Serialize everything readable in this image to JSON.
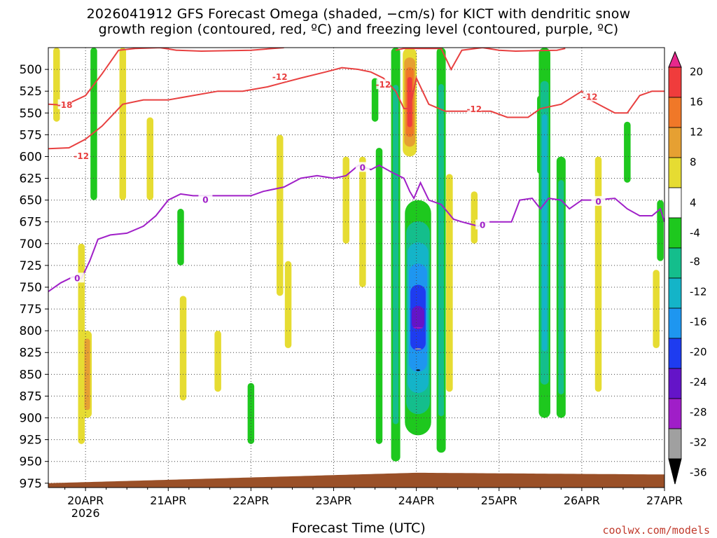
{
  "title_line1": "2026041912 GFS Forecast Omega (shaded, −cm/s) for KICT with dendritic snow",
  "title_line2": "growth region (contoured, red, ºC) and freezing level (contoured, purple, ºC)",
  "credit": "coolwx.com/models",
  "chart_data": {
    "type": "heatmap",
    "title": "2026041912 GFS Forecast Omega (shaded, −cm/s) for KICT with dendritic snow growth region (contoured, red, ºC) and freezing level (contoured, purple, ºC)",
    "xlabel": "Forecast Time (UTC)",
    "ylabel": "",
    "x_ticks": [
      "20APR",
      "21APR",
      "22APR",
      "23APR",
      "24APR",
      "25APR",
      "26APR",
      "27APR"
    ],
    "x_tick_sublabel": "2026",
    "xlim_days": [
      19.55,
      27.0
    ],
    "y_ticks": [
      500,
      525,
      550,
      575,
      600,
      625,
      650,
      675,
      700,
      725,
      750,
      775,
      800,
      825,
      850,
      875,
      900,
      925,
      950,
      975
    ],
    "ylim_hpa": [
      475,
      980
    ],
    "y_axis_inverted": true,
    "grid": true,
    "colorbar": {
      "labels": [
        20,
        16,
        12,
        8,
        4,
        -4,
        -8,
        -12,
        -16,
        -20,
        -24,
        -28,
        -32,
        -36
      ],
      "levels": [
        {
          "range": "> 20",
          "color": "#e8288c"
        },
        {
          "range": "16 to 20",
          "color": "#f03c3c"
        },
        {
          "range": "12 to 16",
          "color": "#f07828"
        },
        {
          "range": "8 to 12",
          "color": "#e6a032"
        },
        {
          "range": "4 to 8",
          "color": "#e6dc32"
        },
        {
          "range": "-4 to 4",
          "color": "#ffffff"
        },
        {
          "range": "-8 to -4",
          "color": "#1ec81e"
        },
        {
          "range": "-12 to -8",
          "color": "#14be8c"
        },
        {
          "range": "-16 to -12",
          "color": "#14b4c8"
        },
        {
          "range": "-20 to -16",
          "color": "#1e96f0"
        },
        {
          "range": "-24 to -20",
          "color": "#1e3cf0"
        },
        {
          "range": "-28 to -24",
          "color": "#6414c8"
        },
        {
          "range": "-32 to -28",
          "color": "#a01ec8"
        },
        {
          "range": "-36 to -32",
          "color": "#a0a0a0"
        },
        {
          "range": "< -36",
          "color": "#000000"
        }
      ]
    },
    "omega_features": [
      {
        "day": 19.65,
        "p_top": 475,
        "p_bot": 560,
        "omega": 6
      },
      {
        "day": 19.95,
        "p_top": 700,
        "p_bot": 930,
        "omega": 6
      },
      {
        "day": 20.02,
        "p_top": 800,
        "p_bot": 900,
        "omega": 10
      },
      {
        "day": 20.1,
        "p_top": 475,
        "p_bot": 650,
        "omega": -6
      },
      {
        "day": 20.45,
        "p_top": 475,
        "p_bot": 650,
        "omega": 6
      },
      {
        "day": 20.78,
        "p_top": 555,
        "p_bot": 650,
        "omega": 5
      },
      {
        "day": 21.15,
        "p_top": 660,
        "p_bot": 725,
        "omega": -6
      },
      {
        "day": 21.18,
        "p_top": 760,
        "p_bot": 880,
        "omega": 6
      },
      {
        "day": 21.6,
        "p_top": 800,
        "p_bot": 870,
        "omega": 5
      },
      {
        "day": 22.0,
        "p_top": 860,
        "p_bot": 930,
        "omega": -6
      },
      {
        "day": 22.35,
        "p_top": 575,
        "p_bot": 760,
        "omega": 5
      },
      {
        "day": 22.45,
        "p_top": 720,
        "p_bot": 820,
        "omega": 5
      },
      {
        "day": 23.15,
        "p_top": 600,
        "p_bot": 700,
        "omega": 5
      },
      {
        "day": 23.35,
        "p_top": 600,
        "p_bot": 750,
        "omega": 5
      },
      {
        "day": 23.5,
        "p_top": 510,
        "p_bot": 560,
        "omega": -6
      },
      {
        "day": 23.55,
        "p_top": 590,
        "p_bot": 930,
        "omega": -6
      },
      {
        "day": 23.75,
        "p_top": 475,
        "p_bot": 950,
        "omega": -10
      },
      {
        "day": 23.92,
        "p_top": 475,
        "p_bot": 600,
        "omega": 18
      },
      {
        "day": 24.02,
        "p_top": 650,
        "p_bot": 920,
        "omega": -40
      },
      {
        "day": 24.3,
        "p_top": 475,
        "p_bot": 940,
        "omega": -8
      },
      {
        "day": 24.4,
        "p_top": 620,
        "p_bot": 870,
        "omega": 6
      },
      {
        "day": 24.7,
        "p_top": 640,
        "p_bot": 700,
        "omega": 5
      },
      {
        "day": 25.5,
        "p_top": 530,
        "p_bot": 620,
        "omega": -6
      },
      {
        "day": 25.55,
        "p_top": 475,
        "p_bot": 900,
        "omega": -14
      },
      {
        "day": 25.75,
        "p_top": 600,
        "p_bot": 900,
        "omega": -10
      },
      {
        "day": 26.2,
        "p_top": 600,
        "p_bot": 870,
        "omega": 5
      },
      {
        "day": 26.55,
        "p_top": 560,
        "p_bot": 630,
        "omega": -6
      },
      {
        "day": 26.9,
        "p_top": 730,
        "p_bot": 820,
        "omega": 5
      },
      {
        "day": 26.95,
        "p_top": 650,
        "p_bot": 720,
        "omega": -6
      }
    ],
    "contours": [
      {
        "name": "-12",
        "color": "#e84040",
        "label": "-12",
        "points": [
          [
            19.55,
            591
          ],
          [
            19.8,
            590
          ],
          [
            20.0,
            580
          ],
          [
            20.2,
            565
          ],
          [
            20.45,
            540
          ],
          [
            20.7,
            535
          ],
          [
            21.0,
            535
          ],
          [
            21.3,
            530
          ],
          [
            21.6,
            525
          ],
          [
            21.9,
            525
          ],
          [
            22.2,
            520
          ],
          [
            22.4,
            515
          ],
          [
            22.6,
            510
          ],
          [
            22.9,
            503
          ],
          [
            23.1,
            498
          ],
          [
            23.3,
            500
          ],
          [
            23.45,
            503
          ],
          [
            23.6,
            510
          ],
          [
            23.75,
            525
          ],
          [
            23.85,
            545
          ],
          [
            23.92,
            545
          ],
          [
            24.0,
            510
          ],
          [
            24.15,
            540
          ],
          [
            24.35,
            548
          ],
          [
            24.6,
            548
          ],
          [
            24.9,
            548
          ],
          [
            25.1,
            555
          ],
          [
            25.35,
            555
          ],
          [
            25.5,
            545
          ],
          [
            25.75,
            540
          ],
          [
            26.0,
            525
          ],
          [
            26.1,
            535
          ],
          [
            26.4,
            550
          ],
          [
            26.55,
            550
          ],
          [
            26.7,
            530
          ],
          [
            26.85,
            525
          ],
          [
            27.0,
            525
          ]
        ],
        "label_at": [
          [
            19.95,
            599
          ],
          [
            22.35,
            508
          ],
          [
            23.6,
            517
          ],
          [
            24.7,
            545
          ],
          [
            26.1,
            531
          ]
        ]
      },
      {
        "name": "-18",
        "color": "#e84040",
        "label": "-18",
        "points": [
          [
            19.55,
            540
          ],
          [
            19.75,
            541
          ],
          [
            20.0,
            530
          ],
          [
            20.2,
            505
          ],
          [
            20.4,
            478
          ],
          [
            20.6,
            476
          ],
          [
            20.9,
            475
          ],
          [
            21.1,
            478
          ],
          [
            21.4,
            479
          ],
          [
            22.0,
            478
          ],
          [
            22.4,
            475
          ]
        ],
        "label_at": [
          [
            19.75,
            540
          ]
        ],
        "segment2": [
          [
            23.75,
            478
          ],
          [
            23.85,
            476
          ],
          [
            24.3,
            476
          ],
          [
            24.42,
            500
          ],
          [
            24.55,
            478
          ],
          [
            24.8,
            475
          ],
          [
            25.0,
            478
          ],
          [
            25.2,
            479
          ],
          [
            25.7,
            478
          ],
          [
            25.8,
            476
          ]
        ]
      },
      {
        "name": "0",
        "color": "#a020c8",
        "label": "0",
        "points": [
          [
            19.55,
            755
          ],
          [
            19.7,
            745
          ],
          [
            19.85,
            738
          ],
          [
            19.95,
            740
          ],
          [
            20.05,
            720
          ],
          [
            20.15,
            695
          ],
          [
            20.3,
            690
          ],
          [
            20.5,
            688
          ],
          [
            20.7,
            680
          ],
          [
            20.85,
            668
          ],
          [
            21.0,
            650
          ],
          [
            21.15,
            643
          ],
          [
            21.3,
            645
          ],
          [
            21.55,
            645
          ],
          [
            22.0,
            645
          ],
          [
            22.15,
            640
          ],
          [
            22.4,
            635
          ],
          [
            22.6,
            625
          ],
          [
            22.8,
            622
          ],
          [
            23.0,
            625
          ],
          [
            23.15,
            622
          ],
          [
            23.3,
            610
          ],
          [
            23.45,
            615
          ],
          [
            23.55,
            610
          ],
          [
            23.7,
            618
          ],
          [
            23.85,
            625
          ],
          [
            23.92,
            640
          ],
          [
            23.97,
            648
          ],
          [
            24.05,
            630
          ],
          [
            24.15,
            650
          ],
          [
            24.3,
            655
          ],
          [
            24.45,
            672
          ],
          [
            24.55,
            675
          ],
          [
            24.75,
            680
          ],
          [
            24.85,
            675
          ],
          [
            25.0,
            675
          ],
          [
            25.15,
            675
          ],
          [
            25.25,
            650
          ],
          [
            25.4,
            648
          ],
          [
            25.5,
            660
          ],
          [
            25.6,
            648
          ],
          [
            25.75,
            650
          ],
          [
            25.85,
            660
          ],
          [
            26.0,
            650
          ],
          [
            26.15,
            650
          ],
          [
            26.4,
            648
          ],
          [
            26.55,
            660
          ],
          [
            26.7,
            668
          ],
          [
            26.85,
            668
          ],
          [
            26.95,
            660
          ],
          [
            27.0,
            675
          ]
        ],
        "label_at": [
          [
            19.9,
            739
          ],
          [
            21.45,
            649
          ],
          [
            23.35,
            612
          ],
          [
            24.8,
            678
          ],
          [
            26.2,
            651
          ]
        ]
      }
    ],
    "terrain": {
      "color": "#9a5028",
      "description": "surface pressure",
      "p_start": 975,
      "p_peak": 963,
      "peak_day": 24.0,
      "p_end": 965
    }
  }
}
